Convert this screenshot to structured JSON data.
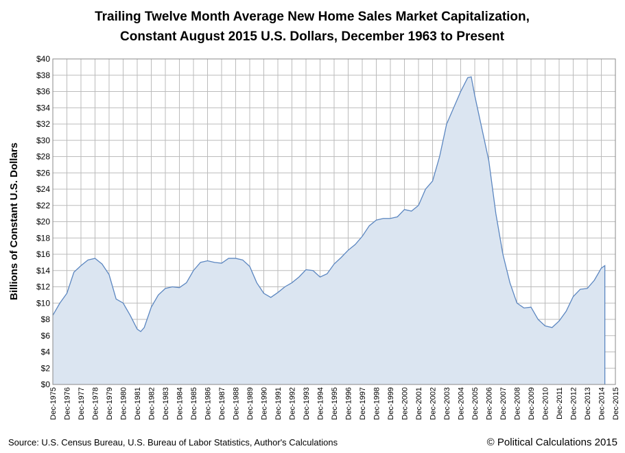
{
  "chart_data": {
    "type": "area",
    "title": [
      "Trailing Twelve Month Average New Home Sales Market Capitalization,",
      "Constant August 2015 U.S. Dollars, December 1963 to Present"
    ],
    "y_label": "Billions of Constant U.S. Dollars",
    "source": "Source: U.S. Census Bureau, U.S. Bureau of Labor Statistics, Author's Calculations",
    "credit": "© Political Calculations 2015",
    "color": "#5b86c0",
    "fill": "#dbe5f1",
    "grid": true,
    "ylim": [
      0,
      40
    ],
    "yticks": [
      {
        "value": 0,
        "label": "$0"
      },
      {
        "value": 2,
        "label": "$2"
      },
      {
        "value": 4,
        "label": "$4"
      },
      {
        "value": 6,
        "label": "$6"
      },
      {
        "value": 8,
        "label": "$8"
      },
      {
        "value": 10,
        "label": "$10"
      },
      {
        "value": 12,
        "label": "$12"
      },
      {
        "value": 14,
        "label": "$14"
      },
      {
        "value": 16,
        "label": "$16"
      },
      {
        "value": 18,
        "label": "$18"
      },
      {
        "value": 20,
        "label": "$20"
      },
      {
        "value": 22,
        "label": "$22"
      },
      {
        "value": 24,
        "label": "$24"
      },
      {
        "value": 26,
        "label": "$26"
      },
      {
        "value": 28,
        "label": "$28"
      },
      {
        "value": 30,
        "label": "$30"
      },
      {
        "value": 32,
        "label": "$32"
      },
      {
        "value": 34,
        "label": "$34"
      },
      {
        "value": 36,
        "label": "$36"
      },
      {
        "value": 38,
        "label": "$38"
      },
      {
        "value": 40,
        "label": "$40"
      }
    ],
    "xlim": [
      "Dec-1975",
      "Dec-2015"
    ],
    "xticks": [
      "Dec-1975",
      "Dec-1976",
      "Dec-1977",
      "Dec-1978",
      "Dec-1979",
      "Dec-1980",
      "Dec-1981",
      "Dec-1982",
      "Dec-1983",
      "Dec-1984",
      "Dec-1985",
      "Dec-1986",
      "Dec-1987",
      "Dec-1988",
      "Dec-1989",
      "Dec-1990",
      "Dec-1991",
      "Dec-1992",
      "Dec-1993",
      "Dec-1994",
      "Dec-1995",
      "Dec-1996",
      "Dec-1997",
      "Dec-1998",
      "Dec-1999",
      "Dec-2000",
      "Dec-2001",
      "Dec-2002",
      "Dec-2003",
      "Dec-2004",
      "Dec-2005",
      "Dec-2006",
      "Dec-2007",
      "Dec-2008",
      "Dec-2009",
      "Dec-2010",
      "Dec-2011",
      "Dec-2012",
      "Dec-2013",
      "Dec-2014",
      "Dec-2015"
    ],
    "x": [
      "Dec-1975",
      "Jun-1976",
      "Dec-1976",
      "Jun-1977",
      "Dec-1977",
      "Jun-1978",
      "Dec-1978",
      "Jun-1979",
      "Dec-1979",
      "Jun-1980",
      "Dec-1980",
      "Jun-1981",
      "Dec-1981",
      "Mar-1982",
      "Jun-1982",
      "Dec-1982",
      "Jun-1983",
      "Dec-1983",
      "Jun-1984",
      "Dec-1984",
      "Jun-1985",
      "Dec-1985",
      "Jun-1986",
      "Dec-1986",
      "Jun-1987",
      "Dec-1987",
      "Jun-1988",
      "Dec-1988",
      "Jun-1989",
      "Dec-1989",
      "Jun-1990",
      "Dec-1990",
      "Jun-1991",
      "Dec-1991",
      "Jun-1992",
      "Dec-1992",
      "Jun-1993",
      "Dec-1993",
      "Jun-1994",
      "Dec-1994",
      "Jun-1995",
      "Dec-1995",
      "Jun-1996",
      "Dec-1996",
      "Jun-1997",
      "Dec-1997",
      "Jun-1998",
      "Dec-1998",
      "Jun-1999",
      "Dec-1999",
      "Jun-2000",
      "Dec-2000",
      "Jun-2001",
      "Dec-2001",
      "Jun-2002",
      "Dec-2002",
      "Jun-2003",
      "Dec-2003",
      "Jun-2004",
      "Dec-2004",
      "Jun-2005",
      "Sep-2005",
      "Dec-2005",
      "Jun-2006",
      "Dec-2006",
      "Jun-2007",
      "Dec-2007",
      "Jun-2008",
      "Dec-2008",
      "Jun-2009",
      "Dec-2009",
      "Jun-2010",
      "Dec-2010",
      "Jun-2011",
      "Dec-2011",
      "Jun-2012",
      "Dec-2012",
      "Jun-2013",
      "Dec-2013",
      "Jun-2014",
      "Dec-2014",
      "Mar-2015"
    ],
    "values": [
      8.5,
      10.0,
      11.2,
      13.8,
      14.6,
      15.3,
      15.5,
      14.8,
      13.5,
      10.5,
      10.0,
      8.5,
      6.8,
      6.5,
      7.0,
      9.5,
      11.0,
      11.8,
      12.0,
      11.9,
      12.5,
      14.0,
      15.0,
      15.2,
      15.0,
      14.9,
      15.5,
      15.5,
      15.3,
      14.5,
      12.5,
      11.2,
      10.7,
      11.3,
      12.0,
      12.5,
      13.2,
      14.1,
      14.0,
      13.2,
      13.6,
      14.8,
      15.6,
      16.5,
      17.2,
      18.2,
      19.5,
      20.2,
      20.4,
      20.4,
      20.6,
      21.5,
      21.3,
      22.0,
      24.0,
      25.0,
      28.0,
      32.0,
      34.0,
      36.0,
      37.7,
      37.8,
      35.5,
      31.5,
      27.5,
      21.0,
      16.0,
      12.5,
      10.0,
      9.4,
      9.5,
      8.0,
      7.2,
      7.0,
      7.8,
      9.0,
      10.8,
      11.7,
      11.8,
      12.8,
      14.3,
      14.6
    ]
  }
}
